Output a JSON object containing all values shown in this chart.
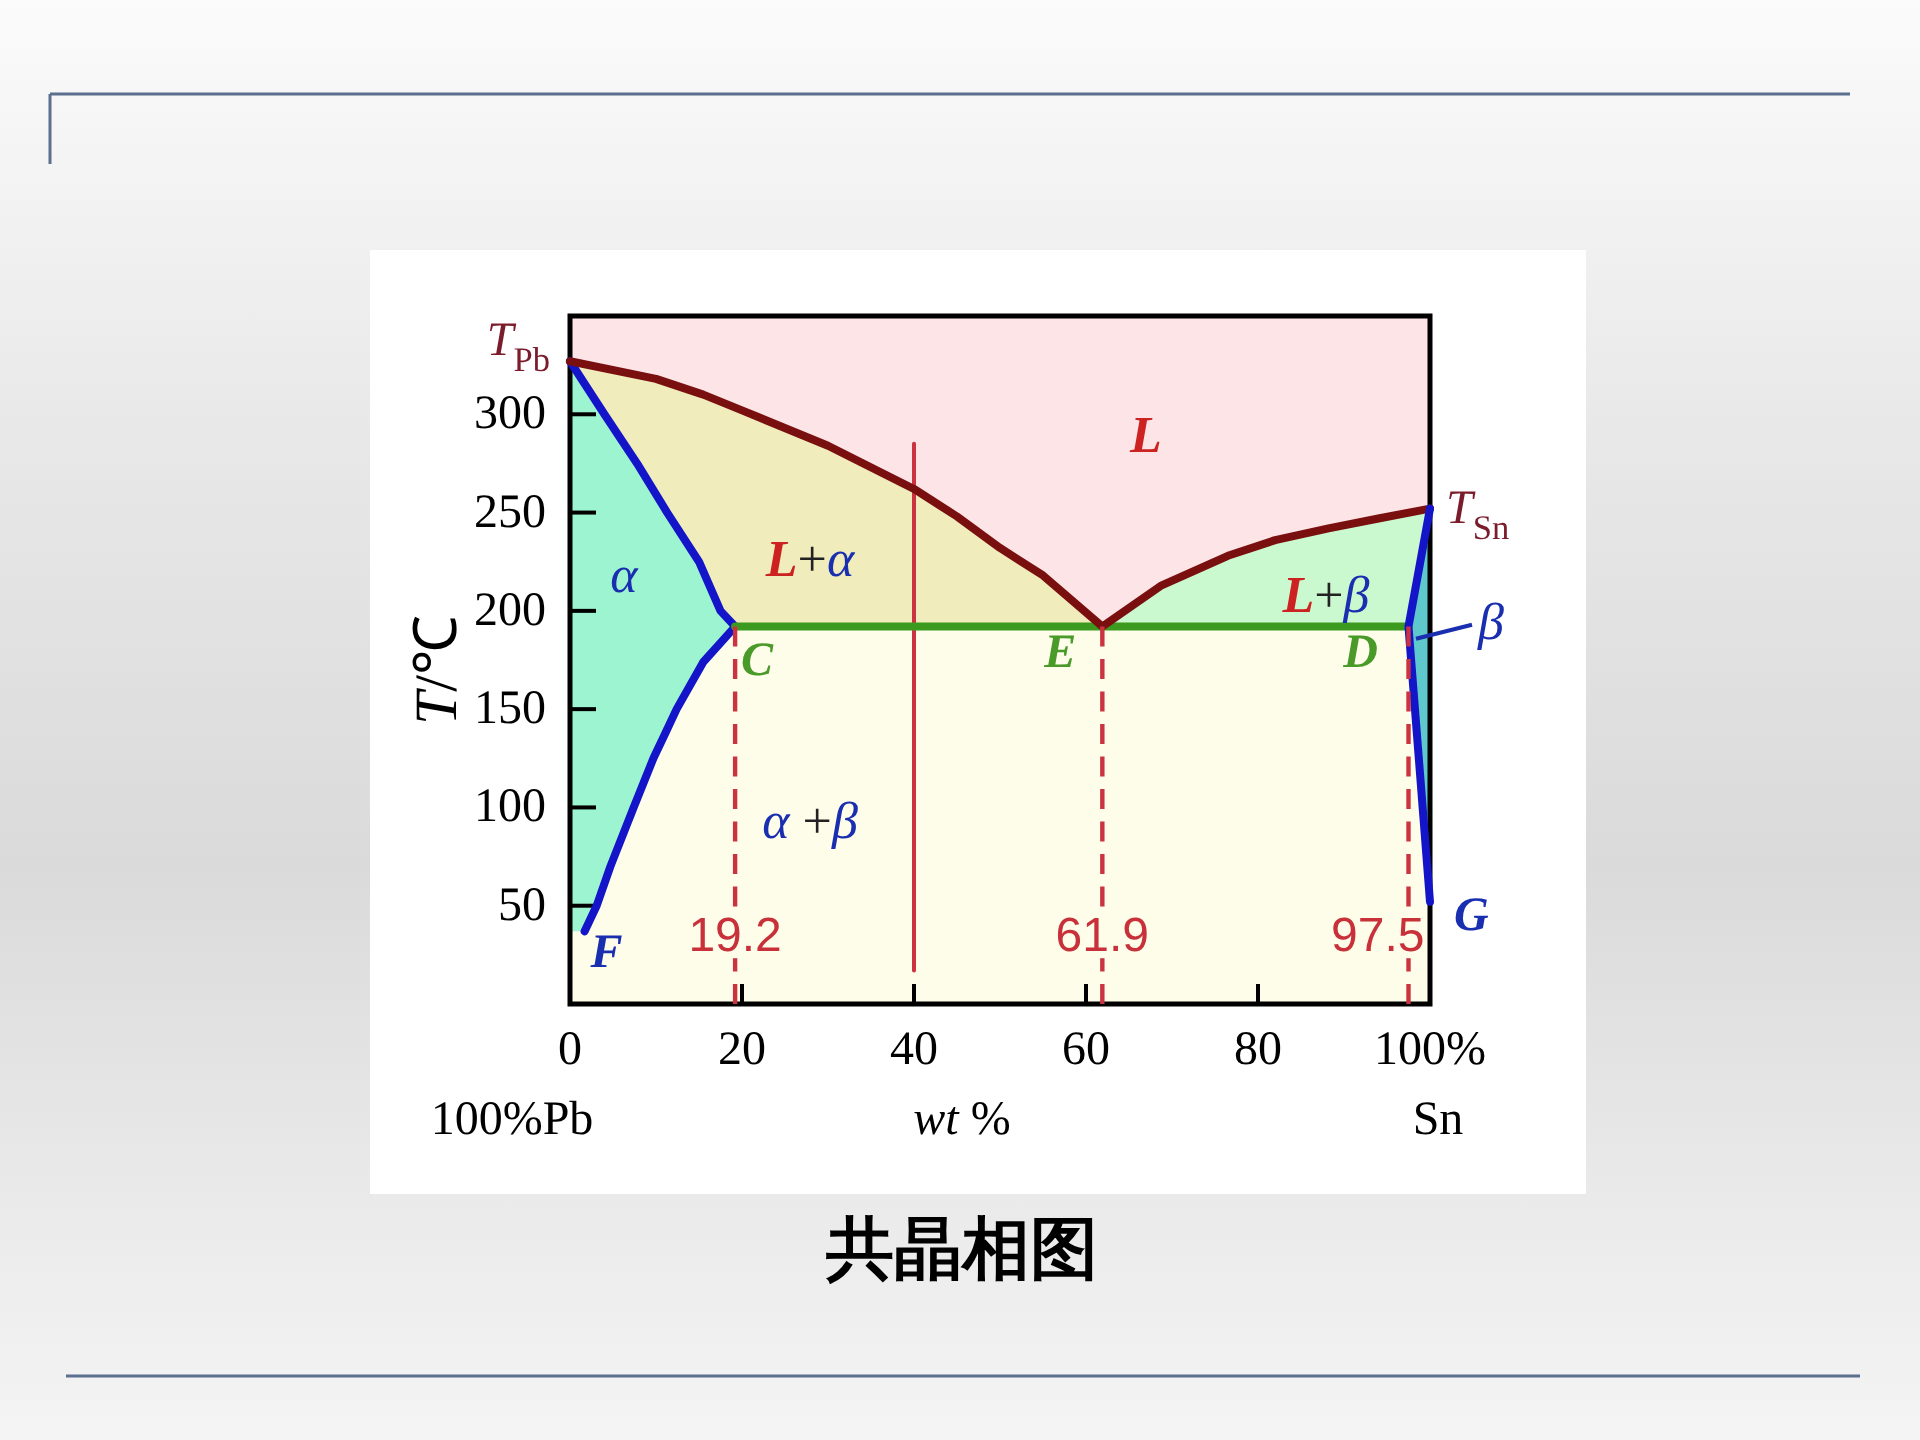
{
  "chart_data": {
    "type": "line",
    "title": "共晶相图",
    "xlabel": "wt %",
    "ylabel": "T/℃",
    "xlim": [
      0,
      100
    ],
    "ylim": [
      0,
      350
    ],
    "xticks": [
      0,
      20,
      40,
      60,
      80,
      {
        "value": 100,
        "label": "100%"
      }
    ],
    "yticks": [
      50,
      100,
      150,
      200,
      250,
      300
    ],
    "series": [
      {
        "color": "#cc3340",
        "x": [
          40,
          40
        ],
        "values": [
          17,
          285
        ]
      },
      {
        "color": "#1414c8",
        "x": [
          0,
          4,
          7.8,
          11.3,
          15,
          17.5,
          19.2,
          15.5,
          12.4,
          11,
          9.7,
          7.4,
          4.7,
          3.1,
          1.7
        ],
        "values": [
          327,
          300,
          275,
          250,
          225,
          200,
          192,
          174,
          150,
          137,
          125,
          100,
          70,
          50,
          37
        ]
      },
      {
        "color": "#3c9b1e",
        "x": [
          19.2,
          40,
          61.9,
          97.5
        ],
        "values": [
          192,
          192,
          192,
          192
        ]
      },
      {
        "color": "#7a0f0f",
        "x": [
          0,
          10,
          15.5,
          20,
          30,
          40,
          45,
          50,
          55,
          61.9,
          68.8,
          76.5,
          82,
          88.2,
          94,
          100
        ],
        "values": [
          327,
          318,
          310,
          302,
          284,
          262,
          248,
          232,
          218,
          192,
          213,
          228,
          236,
          242,
          247,
          252
        ]
      },
      {
        "color": "#1414c8",
        "x": [
          100,
          99,
          97.5,
          98.75,
          100
        ],
        "values": [
          252,
          228,
          192,
          122,
          52
        ]
      },
      {
        "color": "#cc3340",
        "line_style": "dashed",
        "x": [
          19.2,
          19.2
        ],
        "values": [
          192,
          0
        ]
      },
      {
        "color": "#cc3340",
        "line_style": "dashed",
        "x": [
          61.9,
          61.9
        ],
        "values": [
          192,
          0
        ]
      },
      {
        "color": "#cc3340",
        "line_style": "dashed",
        "x": [
          97.5,
          97.5
        ],
        "values": [
          192,
          0
        ]
      },
      {
        "type": "area",
        "color": "#f1ecbc",
        "x": [
          0,
          10,
          15.5,
          20,
          30,
          40,
          45,
          50,
          55,
          61.9
        ],
        "values": [
          327,
          318,
          310,
          302,
          284,
          262,
          248,
          232,
          218,
          192
        ]
      },
      {
        "type": "area",
        "color": "#cbf9cf",
        "x": [
          61.9,
          68.8,
          76.5,
          82,
          88.2,
          94,
          100
        ],
        "values": [
          192,
          213,
          228,
          236,
          242,
          247,
          252
        ]
      },
      {
        "type": "area",
        "color": "#9cf5d0",
        "x": [
          0,
          4,
          7.8,
          11.3,
          15,
          17.5,
          19.2
        ],
        "values": [
          327,
          300,
          275,
          250,
          225,
          200,
          192
        ]
      },
      {
        "type": "area",
        "color": "#5ec8cc",
        "x": [
          97.5,
          98.75,
          100
        ],
        "values": [
          192,
          222,
          252
        ]
      }
    ],
    "annotations": [
      {
        "text": "T$_{Pb}$",
        "x": 0,
        "y": 327
      },
      {
        "text": "T$_{Sn}$",
        "x": 100,
        "y": 252
      },
      "L",
      "L+α",
      "α",
      "L+β",
      {
        "text": "β",
        "x": 100,
        "y": 195
      },
      {
        "text": "C",
        "x": 19.2,
        "y": 192
      },
      {
        "text": "E",
        "x": 61.9,
        "y": 192
      },
      {
        "text": "D",
        "x": 97.5,
        "y": 192
      },
      "α +β",
      {
        "text": "F",
        "x": 1.7,
        "y": 37
      },
      {
        "text": "G",
        "x": 100,
        "y": 52
      },
      {
        "text": "19.2",
        "x": 19.2,
        "y": 35
      },
      {
        "text": "61.9",
        "x": 61.9,
        "y": 35
      },
      {
        "text": "97.5",
        "x": 97.5,
        "y": 35
      },
      "100%Pb",
      "Sn"
    ]
  }
}
